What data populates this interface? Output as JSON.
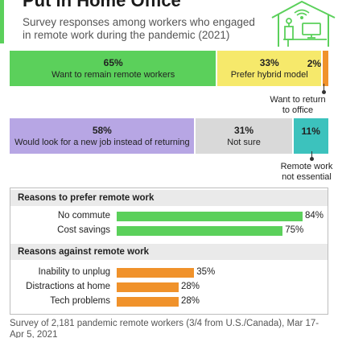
{
  "header": {
    "title": "Put in Home Office",
    "subtitle": "Survey responses among workers who engaged in remote work during the pandemic (2021)"
  },
  "colors": {
    "green": "#5bd05b",
    "yellow": "#f6e96b",
    "orange": "#f0922b",
    "purple": "#b7a6e4",
    "grey": "#d9d9d9",
    "teal": "#3cc2bd",
    "title_bar": "#5bd05b"
  },
  "chart_data": [
    {
      "type": "bar",
      "stacked": true,
      "orientation": "horizontal",
      "segments": [
        {
          "value": 65,
          "value_label": "65%",
          "label": "Want to remain remote workers",
          "color": "#5bd05b"
        },
        {
          "value": 33,
          "value_label": "33%",
          "label": "Prefer hybrid model",
          "color": "#f6e96b"
        },
        {
          "value": 2,
          "value_label": "2%",
          "label": "",
          "color": "#f0922b"
        }
      ],
      "callout": "Want to return\nto office"
    },
    {
      "type": "bar",
      "stacked": true,
      "orientation": "horizontal",
      "segments": [
        {
          "value": 58,
          "value_label": "58%",
          "label": "Would look for a new job instead of returning",
          "color": "#b7a6e4"
        },
        {
          "value": 31,
          "value_label": "31%",
          "label": "Not sure",
          "color": "#d9d9d9"
        },
        {
          "value": 11,
          "value_label": "11%",
          "label": "",
          "color": "#3cc2bd"
        }
      ],
      "callout": "Remote work\nnot essential"
    },
    {
      "type": "bar",
      "orientation": "horizontal",
      "title": "Reasons to prefer remote work",
      "categories": [
        "No commute",
        "Cost savings"
      ],
      "values": [
        84,
        75
      ],
      "value_labels": [
        "84%",
        "75%"
      ],
      "color": "#5bd05b",
      "xlim": [
        0,
        100
      ]
    },
    {
      "type": "bar",
      "orientation": "horizontal",
      "title": "Reasons against remote work",
      "categories": [
        "Inability to unplug",
        "Distractions at home",
        "Tech problems"
      ],
      "values": [
        35,
        28,
        28
      ],
      "value_labels": [
        "35%",
        "28%",
        "28%"
      ],
      "color": "#f0922b",
      "xlim": [
        0,
        100
      ]
    }
  ],
  "source": "Survey of 2,181 pandemic remote workers (3/4 from U.S./Canada), Mar 17-Apr 5, 2021",
  "illustration_icons": [
    "home-office-house-icon",
    "wifi-icon",
    "monitor-icon",
    "desk-icon"
  ]
}
